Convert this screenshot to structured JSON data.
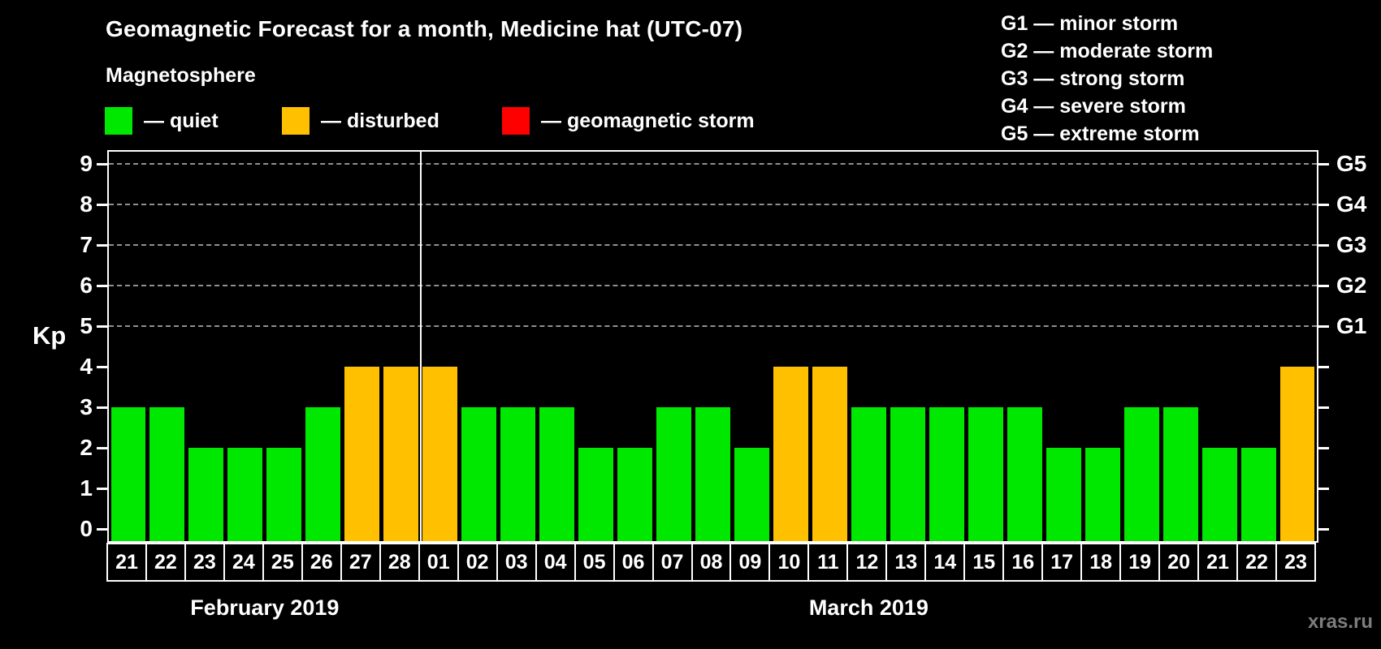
{
  "header": {
    "title": "Geomagnetic Forecast for a month, Medicine hat (UTC-07)",
    "subtitle": "Magnetosphere"
  },
  "legend": {
    "items": [
      {
        "name": "quiet",
        "label": "— quiet",
        "color": "#00e800"
      },
      {
        "name": "disturbed",
        "label": "— disturbed",
        "color": "#ffc000"
      },
      {
        "name": "storm",
        "label": "— geomagnetic storm",
        "color": "#ff0000"
      }
    ]
  },
  "g_legend": {
    "lines": [
      "G1 — minor storm",
      "G2 — moderate storm",
      "G3 — strong storm",
      "G4 — severe storm",
      "G5 — extreme storm"
    ]
  },
  "watermark": "xras.ru",
  "chart_data": {
    "type": "bar",
    "ylabel": "Kp",
    "ylim": [
      0,
      9
    ],
    "yticks": [
      0,
      1,
      2,
      3,
      4,
      5,
      6,
      7,
      8,
      9
    ],
    "grid": "dashed horizontal lines at Kp 5..9 only",
    "right_axis_levels": [
      {
        "kp": 5,
        "label": "G1"
      },
      {
        "kp": 6,
        "label": "G2"
      },
      {
        "kp": 7,
        "label": "G3"
      },
      {
        "kp": 8,
        "label": "G4"
      },
      {
        "kp": 9,
        "label": "G5"
      }
    ],
    "status_colors": {
      "quiet": "#00e800",
      "disturbed": "#ffc000",
      "storm": "#ff0000"
    },
    "months": [
      {
        "label": "February 2019",
        "days": [
          {
            "day": "21",
            "kp": 3,
            "status": "quiet"
          },
          {
            "day": "22",
            "kp": 3,
            "status": "quiet"
          },
          {
            "day": "23",
            "kp": 2,
            "status": "quiet"
          },
          {
            "day": "24",
            "kp": 2,
            "status": "quiet"
          },
          {
            "day": "25",
            "kp": 2,
            "status": "quiet"
          },
          {
            "day": "26",
            "kp": 3,
            "status": "quiet"
          },
          {
            "day": "27",
            "kp": 4,
            "status": "disturbed"
          },
          {
            "day": "28",
            "kp": 4,
            "status": "disturbed"
          }
        ]
      },
      {
        "label": "March 2019",
        "days": [
          {
            "day": "01",
            "kp": 4,
            "status": "disturbed"
          },
          {
            "day": "02",
            "kp": 3,
            "status": "quiet"
          },
          {
            "day": "03",
            "kp": 3,
            "status": "quiet"
          },
          {
            "day": "04",
            "kp": 3,
            "status": "quiet"
          },
          {
            "day": "05",
            "kp": 2,
            "status": "quiet"
          },
          {
            "day": "06",
            "kp": 2,
            "status": "quiet"
          },
          {
            "day": "07",
            "kp": 3,
            "status": "quiet"
          },
          {
            "day": "08",
            "kp": 3,
            "status": "quiet"
          },
          {
            "day": "09",
            "kp": 2,
            "status": "quiet"
          },
          {
            "day": "10",
            "kp": 4,
            "status": "disturbed"
          },
          {
            "day": "11",
            "kp": 4,
            "status": "disturbed"
          },
          {
            "day": "12",
            "kp": 3,
            "status": "quiet"
          },
          {
            "day": "13",
            "kp": 3,
            "status": "quiet"
          },
          {
            "day": "14",
            "kp": 3,
            "status": "quiet"
          },
          {
            "day": "15",
            "kp": 3,
            "status": "quiet"
          },
          {
            "day": "16",
            "kp": 3,
            "status": "quiet"
          },
          {
            "day": "17",
            "kp": 2,
            "status": "quiet"
          },
          {
            "day": "18",
            "kp": 2,
            "status": "quiet"
          },
          {
            "day": "19",
            "kp": 3,
            "status": "quiet"
          },
          {
            "day": "20",
            "kp": 3,
            "status": "quiet"
          },
          {
            "day": "21",
            "kp": 2,
            "status": "quiet"
          },
          {
            "day": "22",
            "kp": 2,
            "status": "quiet"
          },
          {
            "day": "23",
            "kp": 4,
            "status": "disturbed"
          }
        ]
      }
    ]
  }
}
